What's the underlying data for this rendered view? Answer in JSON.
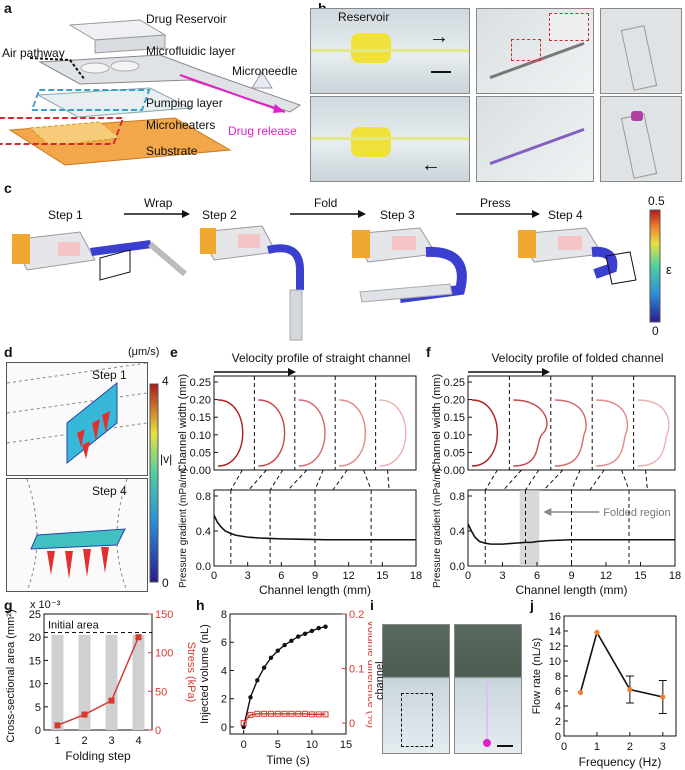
{
  "panels": {
    "a": "a",
    "b": "b",
    "c": "c",
    "d": "d",
    "e": "e",
    "f": "f",
    "g": "g",
    "h": "h",
    "i": "i",
    "j": "j"
  },
  "a": {
    "drug_reservoir": "Drug Reservoir",
    "air_pathway": "Air pathway",
    "microfluidic_layer": "Microfluidic layer",
    "microneedle": "Microneedle",
    "pumping_layer": "Pumping layer",
    "drug_release": "Drug release",
    "microheaters": "Microheaters",
    "substrate": "Substrate"
  },
  "b": {
    "reservoir": "Reservoir"
  },
  "c": {
    "steps": [
      "Step 1",
      "Step 2",
      "Step 3",
      "Step 4"
    ],
    "actions": [
      "Wrap",
      "Fold",
      "Press"
    ],
    "colorbar_max": "0.5",
    "colorbar_min": "0",
    "colorbar_label": "ε"
  },
  "d": {
    "unit": "(μm/s)",
    "max": "4",
    "min": "0",
    "label": "|v|",
    "step1": "Step 1",
    "step4": "Step 4"
  },
  "chart_data": [
    {
      "id": "e",
      "type": "line",
      "title": "Velocity profile of straight channel",
      "top": {
        "ylabel": "Channel width (mm)",
        "yticks": [
          "0.25",
          "0.20",
          "0.15",
          "0.10",
          "0.05",
          "0.00"
        ],
        "profiles": 5
      },
      "bottom": {
        "xlabel": "Channel length (mm)",
        "ylabel": "Pressure gradient (mPa/m)",
        "xticks": [
          "0",
          "3",
          "6",
          "9",
          "12",
          "15",
          "18"
        ],
        "yticks": [
          "0.8",
          "0.4",
          "0.0"
        ],
        "xlim": [
          0,
          18
        ],
        "ylim": [
          0,
          0.8
        ],
        "x": [
          0,
          0.3,
          0.6,
          1,
          1.5,
          2,
          3,
          4,
          5,
          6,
          8,
          10,
          12,
          14,
          16,
          18
        ],
        "y": [
          0.58,
          0.5,
          0.45,
          0.4,
          0.37,
          0.35,
          0.33,
          0.32,
          0.315,
          0.31,
          0.305,
          0.3,
          0.3,
          0.3,
          0.3,
          0.3
        ]
      }
    },
    {
      "id": "f",
      "type": "line",
      "title": "Velocity profile of folded channel",
      "folded_region": "Folded region",
      "top": {
        "ylabel": "Channel width (mm)",
        "yticks": [
          "0.25",
          "0.20",
          "0.15",
          "0.10",
          "0.05",
          "0.00"
        ],
        "profiles": 5
      },
      "bottom": {
        "xlabel": "Channel length (mm)",
        "ylabel": "Pressure gradient (mPa/m)",
        "xticks": [
          "0",
          "3",
          "6",
          "9",
          "12",
          "15",
          "18"
        ],
        "yticks": [
          "0.8",
          "0.4",
          "0.0"
        ],
        "xlim": [
          0,
          18
        ],
        "ylim": [
          0,
          0.8
        ],
        "folded_range": [
          4.5,
          6.2
        ],
        "x": [
          0,
          0.3,
          0.6,
          1,
          1.5,
          2,
          3,
          4,
          5,
          5.5,
          6,
          7,
          9,
          12,
          15,
          18
        ],
        "y": [
          0.48,
          0.4,
          0.33,
          0.28,
          0.26,
          0.25,
          0.25,
          0.26,
          0.27,
          0.27,
          0.28,
          0.29,
          0.3,
          0.3,
          0.3,
          0.3
        ]
      }
    },
    {
      "id": "g",
      "type": "bar",
      "exponent": "x 10⁻³",
      "initial_area": "Initial area",
      "xlabel": "Folding step",
      "ylabel": "Cross-sectional area (mm²)",
      "ylabel_right": "Stress (kPa)",
      "categories": [
        "1",
        "2",
        "3",
        "4"
      ],
      "values": [
        20.5,
        20.5,
        20.5,
        20.5
      ],
      "initial_value": 21,
      "ylim": [
        0,
        25
      ],
      "yticks": [
        "0",
        "5",
        "10",
        "15",
        "20",
        "25"
      ],
      "y2lim": [
        0,
        150
      ],
      "y2ticks": [
        "0",
        "50",
        "100",
        "150"
      ],
      "stress": [
        6,
        20,
        38,
        120
      ]
    },
    {
      "id": "h",
      "type": "line",
      "xlabel": "Time (s)",
      "ylabel": "Injected volume (nL)",
      "ylabel_right": "Volume difference (%)",
      "xticks": [
        "0",
        "5",
        "10",
        "15"
      ],
      "yticks": [
        "0",
        "2",
        "4",
        "6",
        "8"
      ],
      "y2ticks": [
        "0",
        "0.1",
        "0.2"
      ],
      "xlim": [
        -2,
        15
      ],
      "ylim": [
        -0.5,
        8
      ],
      "y2lim": [
        -0.02,
        0.2
      ],
      "x": [
        0,
        1,
        2,
        3,
        4,
        5,
        6,
        7,
        8,
        9,
        10,
        11,
        12
      ],
      "volume": [
        0,
        2.1,
        3.3,
        4.2,
        4.9,
        5.4,
        5.8,
        6.1,
        6.4,
        6.6,
        6.8,
        7.0,
        7.1
      ],
      "difference": [
        0,
        0.015,
        0.017,
        0.017,
        0.017,
        0.017,
        0.017,
        0.017,
        0.017,
        0.017,
        0.016,
        0.016,
        0.016
      ]
    },
    {
      "id": "j",
      "type": "line",
      "xlabel": "Frequency (Hz)",
      "ylabel": "Flow rate (nL/s)",
      "xticks": [
        "0",
        "1",
        "2",
        "3"
      ],
      "yticks": [
        "0",
        "2",
        "4",
        "6",
        "8",
        "10",
        "12",
        "14",
        "16"
      ],
      "xlim": [
        0,
        3.4
      ],
      "ylim": [
        0,
        16
      ],
      "x": [
        0.5,
        1,
        2,
        3
      ],
      "y": [
        5.8,
        13.8,
        6.2,
        5.2
      ],
      "err": [
        0,
        0,
        1.8,
        2.2
      ]
    }
  ],
  "i": {
    "channel": "channel"
  },
  "colors": {
    "red": "#d63a2f",
    "magenta": "#e020c8",
    "black": "#111111",
    "bar_gray": "#d0d0d0",
    "folded_gray": "#c8c8c8"
  }
}
